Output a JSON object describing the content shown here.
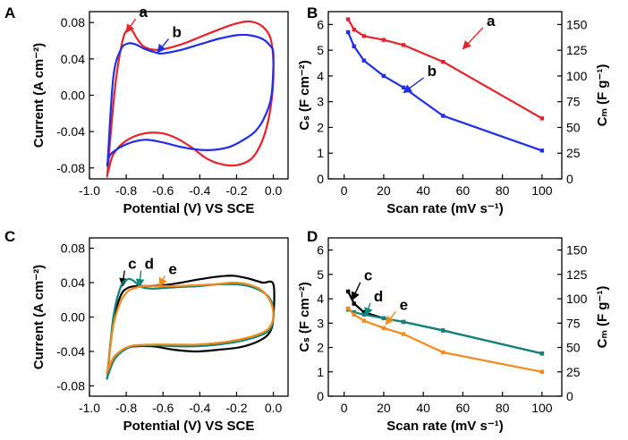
{
  "colors": {
    "a": "#e8222b",
    "b": "#1f2ee8",
    "c": "#000000",
    "d": "#12857f",
    "e": "#f28a1c"
  },
  "chart_data": [
    {
      "panel": "A",
      "type": "line",
      "xlabel": "Potential (V) VS SCE",
      "ylabel": "Current (A cm⁻²)",
      "xlim": [
        -1.0,
        0.08
      ],
      "ylim": [
        -0.092,
        0.092
      ],
      "xticks": [
        -1.0,
        -0.8,
        -0.6,
        -0.4,
        -0.2,
        0.0
      ],
      "xtick_labels": [
        "-1.0",
        "-0.8",
        "-0.6",
        "-0.4",
        "-0.2",
        "0.0"
      ],
      "yticks": [
        -0.08,
        -0.04,
        0.0,
        0.04,
        0.08
      ],
      "ytick_labels": [
        "-0.08",
        "-0.04",
        "0.00",
        "0.04",
        "0.08"
      ],
      "series": [
        {
          "name": "a",
          "color_key": "a",
          "label_at": [
            -0.73,
            0.086
          ],
          "arrow_to": [
            -0.8,
            0.069
          ],
          "x": [
            -0.9,
            -0.86,
            -0.82,
            -0.79,
            -0.77,
            -0.74,
            -0.7,
            -0.62,
            -0.5,
            -0.4,
            -0.3,
            -0.2,
            -0.12,
            -0.05,
            -0.01,
            0.0,
            -0.02,
            -0.06,
            -0.12,
            -0.2,
            -0.28,
            -0.36,
            -0.44,
            -0.52,
            -0.6,
            -0.7,
            -0.8,
            -0.87,
            -0.9
          ],
          "y": [
            -0.08,
            0.01,
            0.06,
            0.073,
            0.072,
            0.062,
            0.053,
            0.05,
            0.056,
            0.064,
            0.072,
            0.079,
            0.081,
            0.074,
            0.058,
            0.02,
            -0.02,
            -0.05,
            -0.07,
            -0.077,
            -0.076,
            -0.07,
            -0.058,
            -0.048,
            -0.042,
            -0.042,
            -0.05,
            -0.065,
            -0.085
          ]
        },
        {
          "name": "b",
          "color_key": "b",
          "label_at": [
            -0.55,
            0.064
          ],
          "arrow_to": [
            -0.63,
            0.047
          ],
          "x": [
            -0.9,
            -0.87,
            -0.83,
            -0.79,
            -0.75,
            -0.7,
            -0.64,
            -0.6,
            -0.5,
            -0.4,
            -0.3,
            -0.2,
            -0.13,
            -0.06,
            -0.02,
            0.0,
            -0.01,
            -0.05,
            -0.1,
            -0.17,
            -0.24,
            -0.32,
            -0.4,
            -0.5,
            -0.6,
            -0.7,
            -0.8,
            -0.88,
            -0.9
          ],
          "y": [
            -0.07,
            0.02,
            0.05,
            0.057,
            0.056,
            0.051,
            0.047,
            0.046,
            0.05,
            0.056,
            0.062,
            0.066,
            0.066,
            0.062,
            0.055,
            0.045,
            0.0,
            -0.025,
            -0.04,
            -0.05,
            -0.057,
            -0.06,
            -0.06,
            -0.057,
            -0.052,
            -0.049,
            -0.054,
            -0.064,
            -0.072
          ]
        }
      ]
    },
    {
      "panel": "B",
      "type": "line",
      "xlabel": "Scan rate (mV s⁻¹)",
      "ylabel": "Cₛ (F cm⁻²)",
      "y2label": "Cₘ (F g⁻¹)",
      "xlim": [
        -8,
        110
      ],
      "ylim": [
        0,
        6.5
      ],
      "y2lim": [
        0,
        162.5
      ],
      "xticks": [
        0,
        20,
        40,
        60,
        80,
        100
      ],
      "xtick_labels": [
        "0",
        "20",
        "40",
        "60",
        "80",
        "100"
      ],
      "yticks": [
        0,
        1,
        2,
        3,
        4,
        5,
        6
      ],
      "ytick_labels": [
        "0",
        "1",
        "2",
        "3",
        "4",
        "5",
        "6"
      ],
      "y2ticks": [
        0,
        25,
        50,
        75,
        100,
        125,
        150
      ],
      "y2tick_labels": [
        "0",
        "25",
        "50",
        "75",
        "100",
        "125",
        "150"
      ],
      "series": [
        {
          "name": "a",
          "color_key": "a",
          "label_at": [
            72,
            5.95
          ],
          "arrow_to": [
            60,
            5.05
          ],
          "x": [
            2,
            5,
            10,
            20,
            30,
            50,
            100
          ],
          "y": [
            6.2,
            5.8,
            5.55,
            5.4,
            5.2,
            4.55,
            2.35
          ]
        },
        {
          "name": "b",
          "color_key": "b",
          "label_at": [
            42,
            4.0
          ],
          "arrow_to": [
            30,
            3.35
          ],
          "x": [
            2,
            5,
            10,
            20,
            30,
            50,
            100
          ],
          "y": [
            5.7,
            5.15,
            4.6,
            4.0,
            3.55,
            2.45,
            1.1
          ]
        }
      ]
    },
    {
      "panel": "C",
      "type": "line",
      "xlabel": "Potential (V) VS SCE",
      "ylabel": "Current (A cm⁻²)",
      "xlim": [
        -1.0,
        0.08
      ],
      "ylim": [
        -0.092,
        0.092
      ],
      "xticks": [
        -1.0,
        -0.8,
        -0.6,
        -0.4,
        -0.2,
        0.0
      ],
      "xtick_labels": [
        "-1.0",
        "-0.8",
        "-0.6",
        "-0.4",
        "-0.2",
        "0.0"
      ],
      "yticks": [
        -0.08,
        -0.04,
        0.0,
        0.04,
        0.08
      ],
      "ytick_labels": [
        "-0.08",
        "-0.04",
        "0.00",
        "0.04",
        "0.08"
      ],
      "series": [
        {
          "name": "c",
          "color_key": "c",
          "label_at": [
            -0.79,
            0.056
          ],
          "arrow_to": [
            -0.82,
            0.036
          ],
          "x": [
            -0.9,
            -0.87,
            -0.83,
            -0.79,
            -0.74,
            -0.68,
            -0.6,
            -0.5,
            -0.4,
            -0.3,
            -0.22,
            -0.14,
            -0.06,
            0.0,
            0.0,
            -0.02,
            -0.08,
            -0.18,
            -0.3,
            -0.42,
            -0.54,
            -0.66,
            -0.78,
            -0.86,
            -0.9
          ],
          "y": [
            -0.06,
            -0.005,
            0.025,
            0.034,
            0.036,
            0.036,
            0.037,
            0.04,
            0.044,
            0.047,
            0.048,
            0.045,
            0.04,
            0.038,
            0.0,
            -0.018,
            -0.028,
            -0.035,
            -0.038,
            -0.04,
            -0.038,
            -0.034,
            -0.035,
            -0.045,
            -0.062
          ]
        },
        {
          "name": "d",
          "color_key": "d",
          "label_at": [
            -0.7,
            0.056
          ],
          "arrow_to": [
            -0.73,
            0.035
          ],
          "x": [
            -0.9,
            -0.87,
            -0.83,
            -0.79,
            -0.76,
            -0.72,
            -0.66,
            -0.58,
            -0.5,
            -0.4,
            -0.3,
            -0.2,
            -0.12,
            -0.05,
            -0.01,
            0.0,
            -0.02,
            -0.08,
            -0.18,
            -0.3,
            -0.42,
            -0.54,
            -0.66,
            -0.78,
            -0.86,
            -0.9
          ],
          "y": [
            -0.065,
            0.0,
            0.035,
            0.044,
            0.042,
            0.035,
            0.033,
            0.034,
            0.035,
            0.036,
            0.038,
            0.038,
            0.035,
            0.028,
            0.018,
            0.0,
            -0.015,
            -0.022,
            -0.028,
            -0.032,
            -0.034,
            -0.034,
            -0.033,
            -0.035,
            -0.048,
            -0.068
          ]
        },
        {
          "name": "e",
          "color_key": "e",
          "label_at": [
            -0.57,
            0.05
          ],
          "arrow_to": [
            -0.62,
            0.036
          ],
          "x": [
            -0.9,
            -0.87,
            -0.83,
            -0.79,
            -0.75,
            -0.7,
            -0.62,
            -0.52,
            -0.42,
            -0.32,
            -0.22,
            -0.14,
            -0.07,
            -0.02,
            0.0,
            -0.02,
            -0.08,
            -0.18,
            -0.3,
            -0.42,
            -0.54,
            -0.66,
            -0.78,
            -0.86,
            -0.9
          ],
          "y": [
            -0.06,
            -0.01,
            0.018,
            0.03,
            0.034,
            0.036,
            0.036,
            0.036,
            0.037,
            0.038,
            0.04,
            0.038,
            0.032,
            0.02,
            0.003,
            -0.012,
            -0.02,
            -0.026,
            -0.03,
            -0.032,
            -0.032,
            -0.032,
            -0.034,
            -0.045,
            -0.062
          ]
        }
      ]
    },
    {
      "panel": "D",
      "type": "line",
      "xlabel": "Scan rate (mV s⁻¹)",
      "ylabel": "Cₛ (F cm⁻²)",
      "y2label": "Cₘ (F g⁻¹)",
      "xlim": [
        -8,
        110
      ],
      "ylim": [
        0,
        6.5
      ],
      "y2lim": [
        0,
        162.5
      ],
      "xticks": [
        0,
        20,
        40,
        60,
        80,
        100
      ],
      "xtick_labels": [
        "0",
        "20",
        "40",
        "60",
        "80",
        "100"
      ],
      "yticks": [
        0,
        1,
        2,
        3,
        4,
        5,
        6
      ],
      "ytick_labels": [
        "0",
        "1",
        "2",
        "3",
        "4",
        "5",
        "6"
      ],
      "y2ticks": [
        0,
        25,
        50,
        75,
        100,
        125,
        150
      ],
      "y2tick_labels": [
        "0",
        "25",
        "50",
        "75",
        "100",
        "125",
        "150"
      ],
      "series": [
        {
          "name": "c",
          "color_key": "c",
          "label_at": [
            10,
            4.75
          ],
          "arrow_to": [
            4,
            3.95
          ],
          "x": [
            2,
            5,
            10,
            20,
            30,
            50,
            100
          ],
          "y": [
            4.3,
            3.8,
            3.45,
            3.2,
            3.05,
            2.7,
            1.75
          ]
        },
        {
          "name": "d",
          "color_key": "d",
          "label_at": [
            15,
            3.9
          ],
          "arrow_to": [
            11,
            3.3
          ],
          "x": [
            2,
            5,
            10,
            20,
            30,
            50,
            100
          ],
          "y": [
            3.55,
            3.45,
            3.35,
            3.2,
            3.05,
            2.7,
            1.75
          ]
        },
        {
          "name": "e",
          "color_key": "e",
          "label_at": [
            28,
            3.55
          ],
          "arrow_to": [
            21,
            2.95
          ],
          "x": [
            2,
            5,
            10,
            20,
            30,
            50,
            100
          ],
          "y": [
            3.6,
            3.35,
            3.1,
            2.8,
            2.55,
            1.8,
            1.0
          ]
        }
      ]
    }
  ]
}
